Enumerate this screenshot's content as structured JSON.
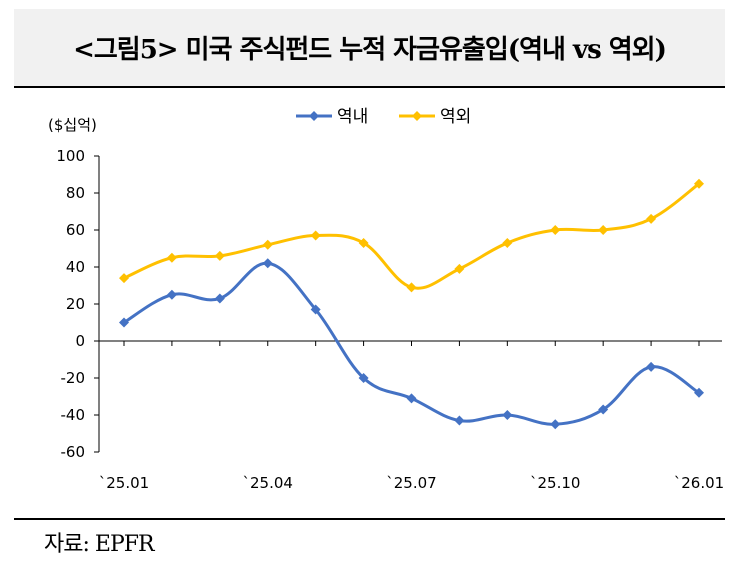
{
  "title": "<그림5> 미국 주식펀드 누적 자금유출입(역내 vs 역외)",
  "source": "자료: EPFR",
  "chart_data": {
    "type": "line",
    "unit_label": "($십억)",
    "categories": [
      "`25.01",
      "`25.02",
      "`25.03",
      "`25.04",
      "`25.05",
      "`25.06",
      "`25.07",
      "`25.08",
      "`25.09",
      "`25.10",
      "`25.11",
      "`25.12",
      "`26.01"
    ],
    "x_tick_labels": [
      "`25.01",
      "`25.04",
      "`25.07",
      "`25.10",
      "`26.01"
    ],
    "y_ticks": [
      "100",
      "80",
      "60",
      "40",
      "20",
      "0",
      "-20",
      "-40",
      "-60"
    ],
    "ylim": [
      -60,
      100
    ],
    "series": [
      {
        "name": "역내",
        "color": "#4472C4",
        "values": [
          10,
          25,
          23,
          42,
          17,
          -20,
          -31,
          -43,
          -40,
          -45,
          -37,
          -14,
          -28
        ]
      },
      {
        "name": "역외",
        "color": "#FFC000",
        "values": [
          34,
          45,
          46,
          52,
          57,
          53,
          29,
          39,
          53,
          60,
          60,
          66,
          85
        ]
      }
    ],
    "legend_position": "top"
  }
}
